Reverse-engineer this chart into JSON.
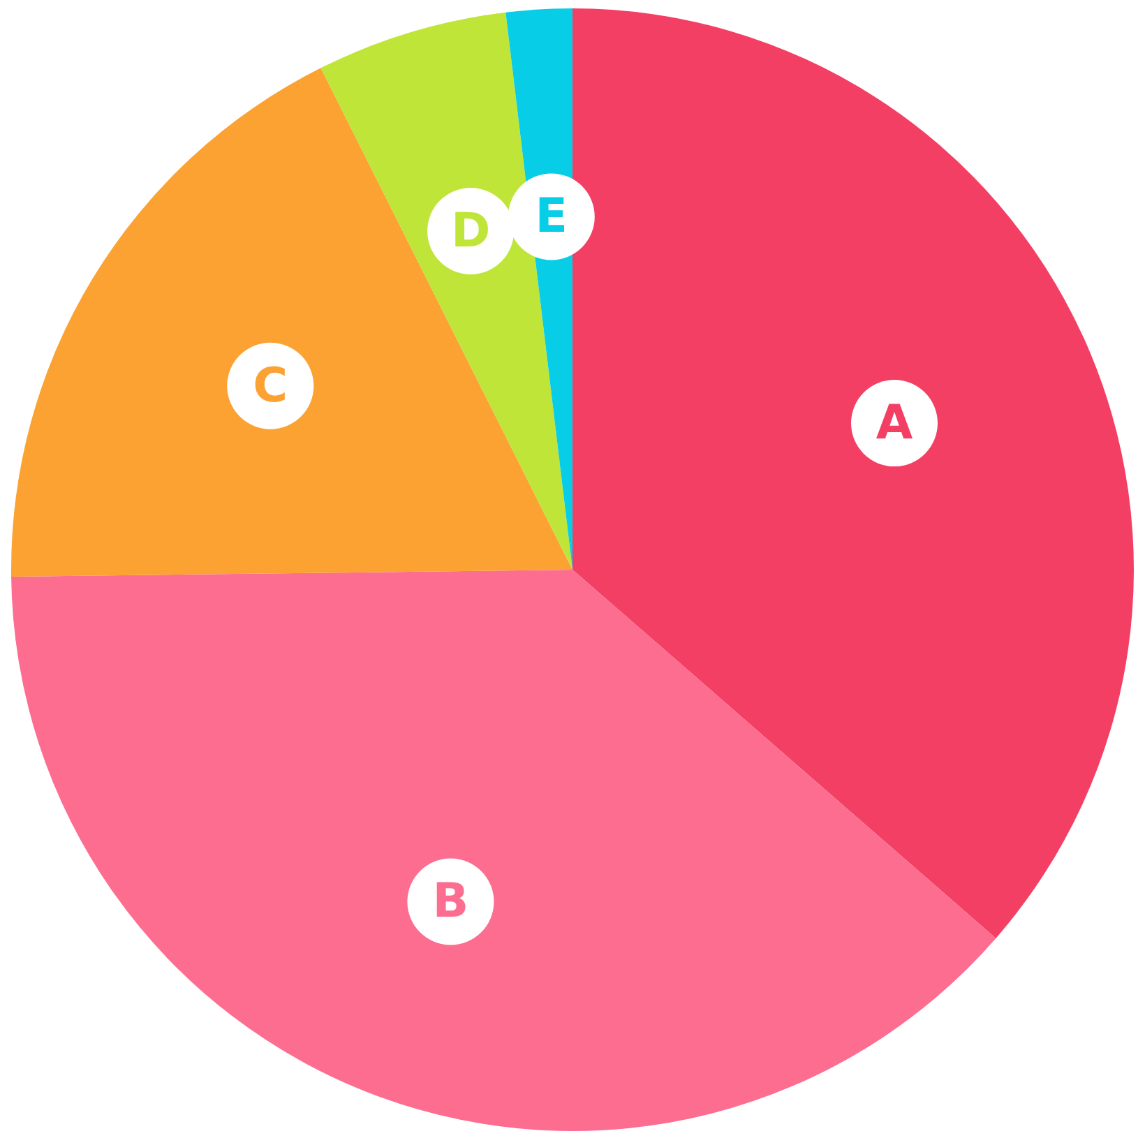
{
  "chart_data": {
    "type": "pie",
    "categories": [
      "A",
      "B",
      "C",
      "D",
      "E"
    ],
    "values": [
      36.4,
      38.4,
      17.8,
      5.5,
      1.9
    ],
    "colors": [
      "#f43f65",
      "#fd6d8f",
      "#fba232",
      "#bfe538",
      "#08cde6"
    ]
  }
}
